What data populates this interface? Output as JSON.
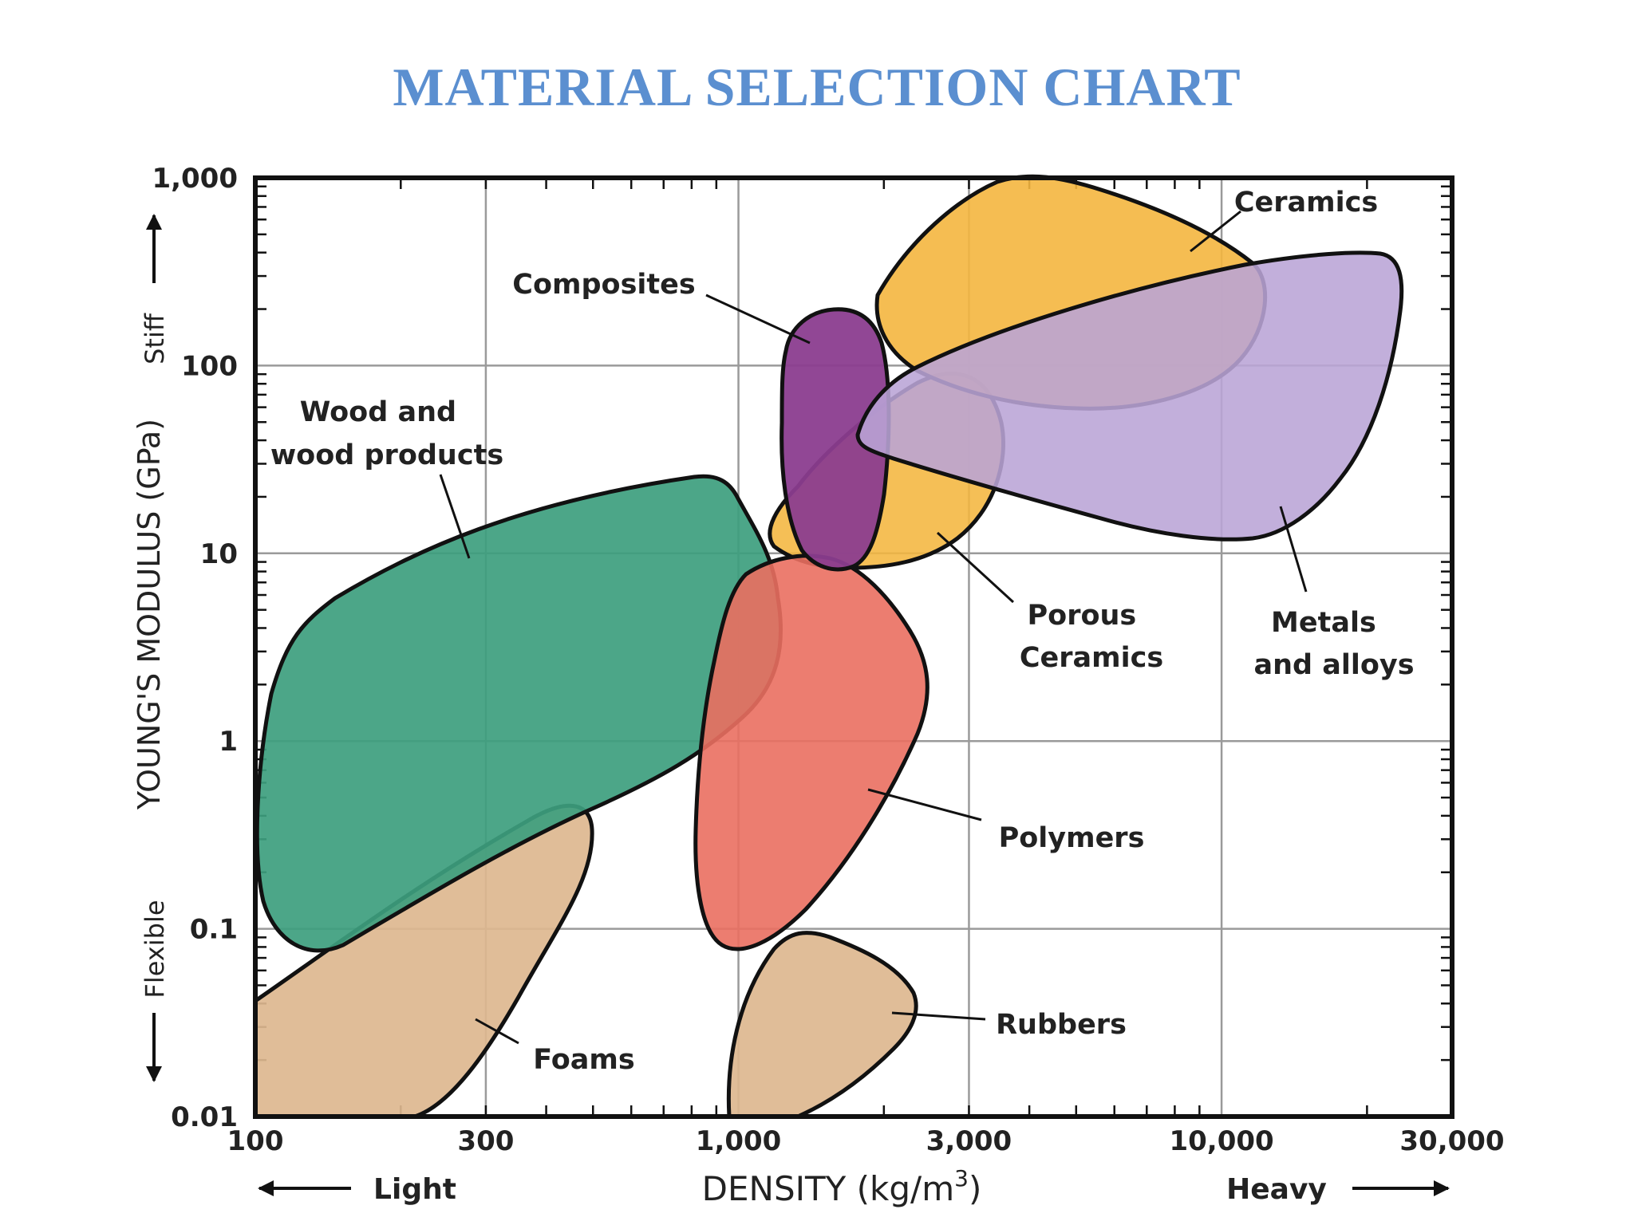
{
  "chart_data": {
    "type": "scatter",
    "title": "MATERIAL SELECTION CHART",
    "xlabel": "DENSITY (kg/m",
    "xlabel_sup": "3",
    "xlabel_close": ")",
    "ylabel": "YOUNG'S MODULUS (GPa)",
    "x_scale": "log",
    "y_scale": "log",
    "xlim": [
      100,
      30000
    ],
    "ylim": [
      0.01,
      1000
    ],
    "x_ticks": [
      100,
      300,
      1000,
      3000,
      10000,
      30000
    ],
    "x_tick_labels": [
      "100",
      "300",
      "1,000",
      "3,000",
      "10,000",
      "30,000"
    ],
    "y_ticks": [
      0.01,
      0.1,
      1,
      10,
      100,
      1000
    ],
    "y_tick_labels": [
      "0.01",
      "0.1",
      "1",
      "10",
      "100",
      "1,000"
    ],
    "grid": true,
    "x_direction_labels": {
      "left": "Light",
      "right": "Heavy"
    },
    "y_direction_labels": {
      "top": "Stiff",
      "bottom": "Flexible"
    },
    "regions": [
      {
        "name": "Wood and wood products",
        "color": "#3d9e7e",
        "density_range": [
          100,
          1300
        ],
        "modulus_range": [
          0.08,
          25
        ]
      },
      {
        "name": "Foams",
        "color": "#ddb78f",
        "density_range": [
          100,
          530
        ],
        "modulus_range": [
          0.01,
          0.45
        ]
      },
      {
        "name": "Rubbers",
        "color": "#ddb78f",
        "density_range": [
          1000,
          2500
        ],
        "modulus_range": [
          0.01,
          0.1
        ]
      },
      {
        "name": "Polymers",
        "color": "#ea6f60",
        "density_range": [
          900,
          2400
        ],
        "modulus_range": [
          0.08,
          9
        ]
      },
      {
        "name": "Porous Ceramics",
        "color": "#f4b63f",
        "density_range": [
          1200,
          3500
        ],
        "modulus_range": [
          8,
          30
        ]
      },
      {
        "name": "Ceramics",
        "color": "#f4b63f",
        "density_range": [
          2200,
          12000
        ],
        "modulus_range": [
          60,
          1000
        ]
      },
      {
        "name": "Composites",
        "color": "#8b3d8f",
        "density_range": [
          1400,
          2100
        ],
        "modulus_range": [
          8,
          200
        ]
      },
      {
        "name": "Metals and alloys",
        "color": "#b9a4d6",
        "density_range": [
          2500,
          23000
        ],
        "modulus_range": [
          12,
          400
        ]
      }
    ],
    "annotations": [
      {
        "text": [
          "Wood and",
          "wood products"
        ],
        "target": "Wood and wood products"
      },
      {
        "text": [
          "Composites"
        ],
        "target": "Composites"
      },
      {
        "text": [
          "Ceramics"
        ],
        "target": "Ceramics"
      },
      {
        "text": [
          "Porous",
          "Ceramics"
        ],
        "target": "Porous Ceramics"
      },
      {
        "text": [
          "Metals",
          "and alloys"
        ],
        "target": "Metals and alloys"
      },
      {
        "text": [
          "Polymers"
        ],
        "target": "Polymers"
      },
      {
        "text": [
          "Rubbers"
        ],
        "target": "Rubbers"
      },
      {
        "text": [
          "Foams"
        ],
        "target": "Foams"
      }
    ]
  }
}
